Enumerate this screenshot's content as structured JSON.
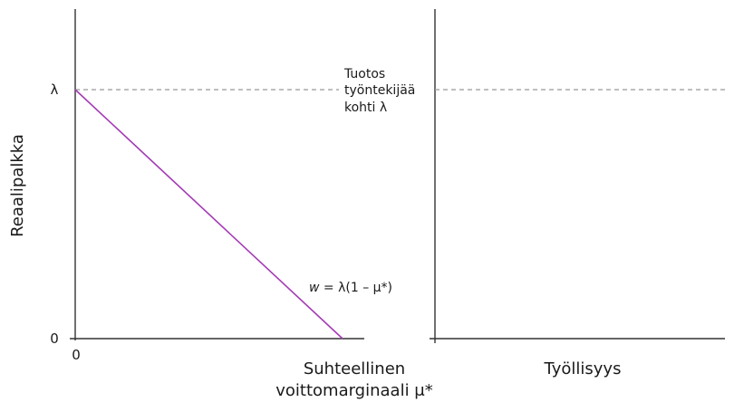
{
  "left_panel": {
    "y_axis_label": "Reaalipalkka",
    "y_tick_top": "λ",
    "y_tick_bottom": "0",
    "x_tick_origin": "0",
    "x_axis_label_line1": "Suhteellinen",
    "x_axis_label_line2": "voittomarginaali μ*",
    "guide_annotation": [
      "Tuotos",
      "työntekijää",
      "kohti λ"
    ],
    "curve_label": {
      "variable": "w",
      "expression": " =  λ(1 – μ*)"
    }
  },
  "right_panel": {
    "x_axis_label": "Työllisyys"
  },
  "colors": {
    "curve": "#a43bb5",
    "guide": "#999999",
    "axis": "#333333"
  }
}
